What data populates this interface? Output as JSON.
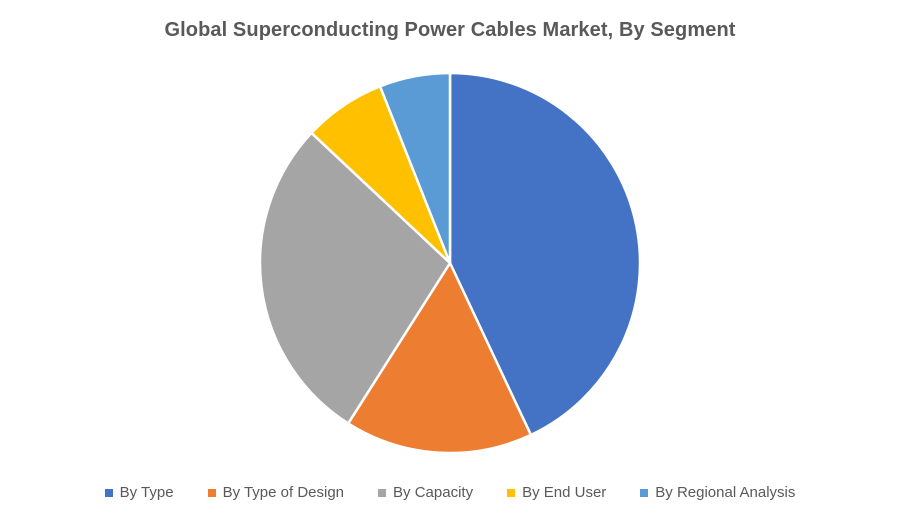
{
  "chart_data": {
    "type": "pie",
    "title": "Global Superconducting Power Cables Market, By Segment",
    "categories": [
      "By Type",
      "By Type of Design",
      "By Capacity",
      "By End User",
      "By Regional Analysis"
    ],
    "values": [
      43,
      16,
      28,
      7,
      6
    ],
    "colors": [
      "#4472C4",
      "#ED7D31",
      "#A5A5A5",
      "#FFC000",
      "#5B9BD5"
    ],
    "start_angle_deg": 0,
    "direction": "clockwise",
    "legend_position": "bottom"
  }
}
